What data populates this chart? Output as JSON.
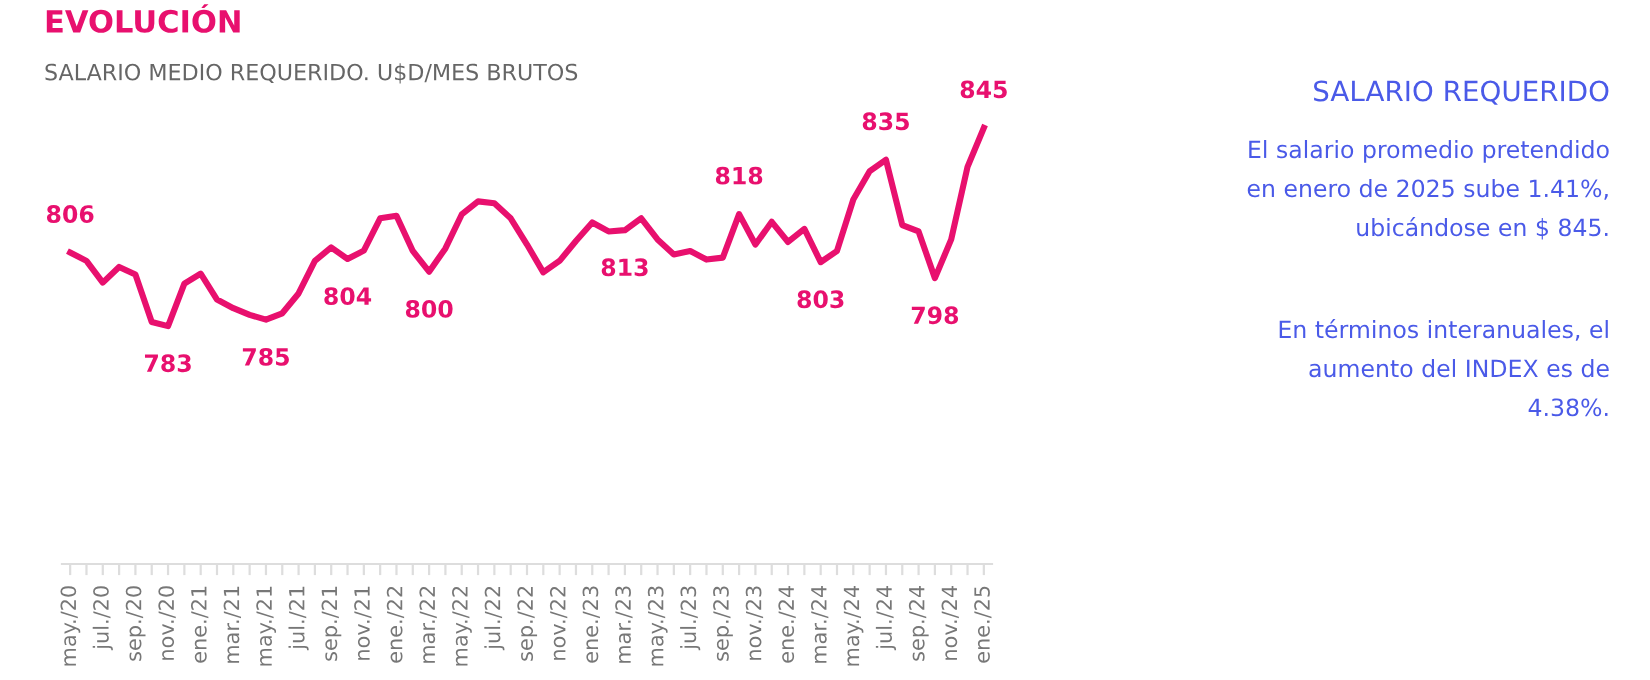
{
  "chart_data": {
    "type": "line",
    "title": "EVOLUCIÓN",
    "subtitle": "SALARIO MEDIO REQUERIDO. U$D/MES BRUTOS",
    "categories": [
      "may./20",
      null,
      "jul./20",
      null,
      "sep./20",
      null,
      "nov./20",
      null,
      "ene./21",
      null,
      "mar./21",
      null,
      "may./21",
      null,
      "jul./21",
      null,
      "sep./21",
      null,
      "nov./21",
      null,
      "ene./22",
      null,
      "mar./22",
      null,
      "may./22",
      null,
      "jul./22",
      null,
      "sep./22",
      null,
      "nov./22",
      null,
      "ene./23",
      null,
      "mar./23",
      null,
      "may./23",
      null,
      "jul./23",
      null,
      "sep./23",
      null,
      "nov./23",
      null,
      "ene./24",
      null,
      "mar./24",
      null,
      "may./24",
      null,
      "jul./24",
      null,
      "sep./24",
      null,
      "nov./24",
      null,
      "ene./25"
    ],
    "series": [
      {
        "color": "#e8106e",
        "values": [
          806,
          803.4,
          796.6,
          801.5,
          799.1,
          784.3,
          783,
          796.3,
          799.4,
          791.3,
          788.6,
          786.5,
          785,
          787,
          793.2,
          803.4,
          807.6,
          804,
          806.6,
          816.7,
          817.5,
          806.5,
          800,
          807.3,
          817.9,
          822,
          821.4,
          816.7,
          808.5,
          799.8,
          803.4,
          809.6,
          815.4,
          812.6,
          813,
          816.7,
          810.1,
          805.4,
          806.5,
          803.8,
          804.4,
          818,
          808.5,
          815.6,
          809.3,
          813.4,
          803,
          806.5,
          822.6,
          831.4,
          835,
          814.6,
          812.6,
          798,
          810.1,
          832.8,
          845
        ],
        "value_labels": [
          "806",
          null,
          null,
          null,
          null,
          null,
          "783",
          null,
          null,
          null,
          null,
          null,
          "785",
          null,
          null,
          null,
          null,
          "804",
          null,
          null,
          null,
          null,
          "800",
          null,
          null,
          null,
          null,
          null,
          null,
          null,
          null,
          null,
          null,
          null,
          "813",
          null,
          null,
          null,
          null,
          null,
          null,
          "818",
          null,
          null,
          null,
          null,
          "803",
          null,
          null,
          null,
          "835",
          null,
          null,
          "798",
          null,
          null,
          "845"
        ]
      }
    ],
    "annotations": [
      "SALARIO REQUERIDO",
      "El salario promedio pretendido\nen enero de 2025 sube 1.41%,\nubicándose en $ 845.",
      "En términos interanuales, el\naumento del INDEX es de\n4.38%."
    ],
    "tick_labels": "x",
    "grid": false,
    "legend": false,
    "marker": "none",
    "line_style": "solid"
  }
}
